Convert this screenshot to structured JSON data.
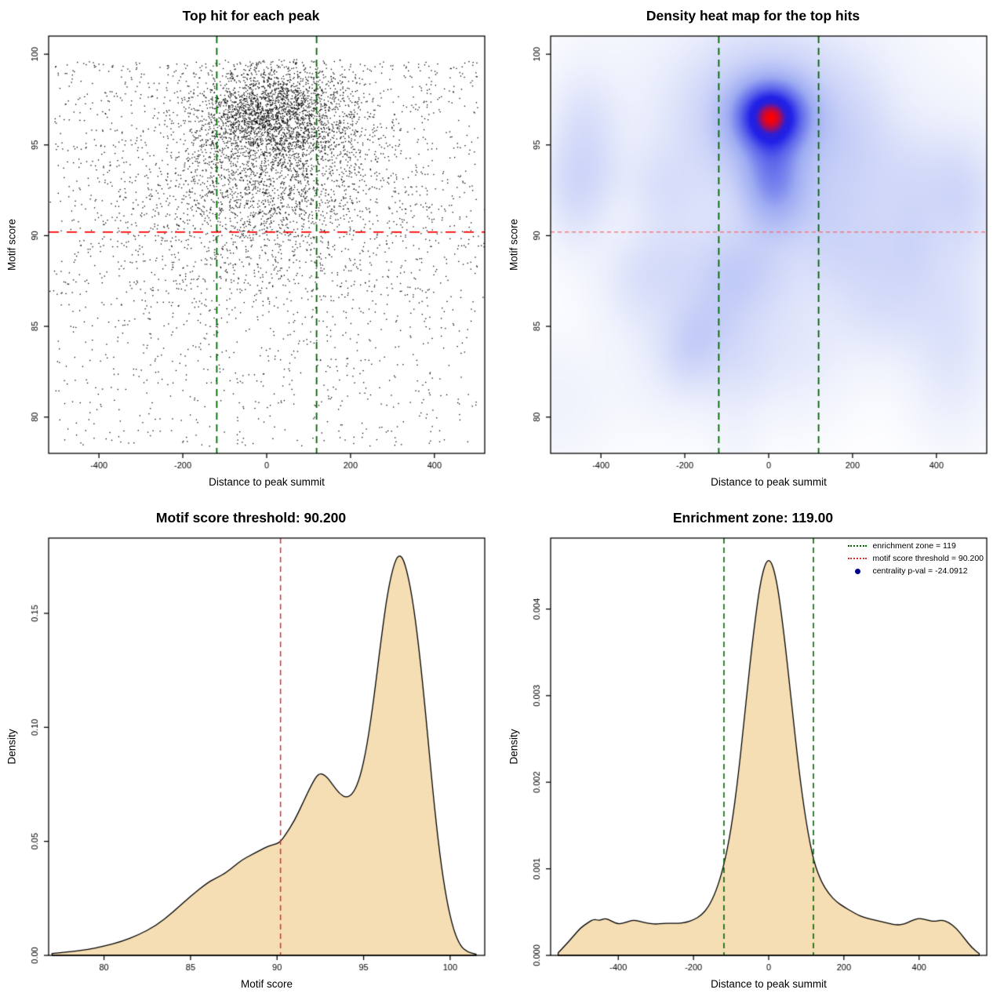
{
  "chart_data": [
    {
      "type": "scatter",
      "title": "Top hit for each peak",
      "xlabel": "Distance to peak summit",
      "ylabel": "Motif score",
      "xlim": [
        -520,
        520
      ],
      "ylim": [
        78,
        101
      ],
      "xticks": [
        -400,
        -200,
        0,
        200,
        400
      ],
      "xtick_labels": [
        "-400",
        "-200",
        "0",
        "200",
        "400"
      ],
      "yticks": [
        80,
        85,
        90,
        95,
        100
      ],
      "ytick_labels": [
        "80",
        "85",
        "90",
        "95",
        "100"
      ],
      "point_color": "#000000",
      "n_points": 6500,
      "seed": 42,
      "mixture": [
        {
          "weight": 0.4,
          "x": {
            "dist": "normal",
            "mean": 15,
            "sd": 100
          },
          "y": {
            "dist": "normal",
            "mean": 96.6,
            "sd": 1.35,
            "max": 99.7
          }
        },
        {
          "weight": 0.22,
          "x": {
            "dist": "normal",
            "mean": 5,
            "sd": 150
          },
          "y": {
            "dist": "normal",
            "mean": 93.0,
            "sd": 2.0,
            "max": 99.7
          }
        },
        {
          "weight": 0.1,
          "x": {
            "dist": "normal",
            "mean": 10,
            "sd": 260
          },
          "y": {
            "dist": "normal",
            "mean": 89.5,
            "sd": 2.5,
            "max": 99.7
          }
        },
        {
          "weight": 0.28,
          "x": {
            "dist": "uniform",
            "min": -505,
            "max": 505
          },
          "y": {
            "dist": "skew_high",
            "min": 78.4,
            "max": 99.6,
            "power": 1.3
          }
        }
      ],
      "hlines": [
        {
          "y": 90.2,
          "color": "#ff0000",
          "dash": [
            13,
            10
          ],
          "width": 1.8
        }
      ],
      "vlines": [
        {
          "x": -119,
          "color": "#006400",
          "dash": [
            9,
            6
          ],
          "width": 1.8
        },
        {
          "x": 119,
          "color": "#006400",
          "dash": [
            9,
            6
          ],
          "width": 1.8
        }
      ]
    },
    {
      "type": "heatmap",
      "title": "Density heat map for the top hits",
      "xlabel": "Distance to peak summit",
      "ylabel": "Motif score",
      "xlim": [
        -520,
        520
      ],
      "ylim": [
        78,
        101
      ],
      "xticks": [
        -400,
        -200,
        0,
        200,
        400
      ],
      "xtick_labels": [
        "-400",
        "-200",
        "0",
        "200",
        "400"
      ],
      "yticks": [
        80,
        85,
        90,
        95,
        100
      ],
      "ytick_labels": [
        "80",
        "85",
        "90",
        "95",
        "100"
      ],
      "gamma": 0.6,
      "colormap": [
        [
          0,
          "#ffffff"
        ],
        [
          0.12,
          "#eef1fc"
        ],
        [
          0.3,
          "#ccd4f8"
        ],
        [
          0.5,
          "#9dabf2"
        ],
        [
          0.68,
          "#5b64ea"
        ],
        [
          0.82,
          "#2020e8"
        ],
        [
          0.9,
          "#2a1fd8"
        ],
        [
          1,
          "#ff0000"
        ]
      ],
      "kernels": [
        {
          "cx": 5,
          "cy": 96.6,
          "sx": 52,
          "sy": 1.15,
          "amp": 1.0
        },
        {
          "cx": 5,
          "cy": 96.4,
          "sx": 115,
          "sy": 2.5,
          "amp": 0.32
        },
        {
          "cx": 0,
          "cy": 96.3,
          "sx": 230,
          "sy": 4.2,
          "amp": 0.1
        },
        {
          "cx": 5,
          "cy": 94.3,
          "sx": 42,
          "sy": 1.4,
          "amp": 0.16
        },
        {
          "cx": 8,
          "cy": 92.6,
          "sx": 48,
          "sy": 1.6,
          "amp": 0.3
        },
        {
          "cx": -440,
          "cy": 95.3,
          "sx": 55,
          "sy": 2.4,
          "amp": 0.12
        },
        {
          "cx": -460,
          "cy": 92.0,
          "sx": 50,
          "sy": 2.0,
          "amp": 0.09
        },
        {
          "cx": -300,
          "cy": 87.3,
          "sx": 70,
          "sy": 2.0,
          "amp": 0.09
        },
        {
          "cx": -150,
          "cy": 84.2,
          "sx": 80,
          "sy": 2.2,
          "amp": 0.08
        },
        {
          "cx": 60,
          "cy": 83.6,
          "sx": 90,
          "sy": 2.4,
          "amp": 0.07
        },
        {
          "cx": 260,
          "cy": 86.8,
          "sx": 75,
          "sy": 2.2,
          "amp": 0.08
        },
        {
          "cx": 440,
          "cy": 85.8,
          "sx": 70,
          "sy": 2.6,
          "amp": 0.09
        },
        {
          "cx": 470,
          "cy": 91.8,
          "sx": 55,
          "sy": 2.2,
          "amp": 0.07
        },
        {
          "cx": -80,
          "cy": 88.6,
          "sx": 60,
          "sy": 1.8,
          "amp": 0.08
        },
        {
          "cx": 150,
          "cy": 89.5,
          "sx": 60,
          "sy": 1.8,
          "amp": 0.07
        },
        {
          "cx": 350,
          "cy": 92.5,
          "sx": 70,
          "sy": 2.0,
          "amp": 0.06
        },
        {
          "cx": -230,
          "cy": 91.5,
          "sx": 60,
          "sy": 2.0,
          "amp": 0.07
        }
      ],
      "noise": {
        "count": 30,
        "seed": 7,
        "amp_min": 0.02,
        "amp_max": 0.05,
        "sx": 60,
        "sy": 1.8,
        "y_min": 80,
        "y_max": 95
      },
      "hlines": [
        {
          "y": 90.2,
          "color": "#ff6666",
          "dash": [
            5,
            4
          ],
          "width": 1.2
        }
      ],
      "vlines": [
        {
          "x": -119,
          "color": "#006400",
          "dash": [
            9,
            6
          ],
          "width": 1.8
        },
        {
          "x": 119,
          "color": "#006400",
          "dash": [
            9,
            6
          ],
          "width": 1.8
        }
      ]
    },
    {
      "type": "area",
      "title": "Motif score threshold: 90.200",
      "xlabel": "Motif score",
      "ylabel": "Density",
      "xlim": [
        76.8,
        102
      ],
      "ylim": [
        0,
        0.183
      ],
      "xticks": [
        80,
        85,
        90,
        95,
        100
      ],
      "xtick_labels": [
        "80",
        "85",
        "90",
        "95",
        "100"
      ],
      "yticks": [
        0,
        0.05,
        0.1,
        0.15
      ],
      "ytick_labels": [
        "0.00",
        "0.05",
        "0.10",
        "0.15"
      ],
      "fill": "#f5deb3",
      "stroke": "#000000",
      "points": [
        [
          77,
          0.0008
        ],
        [
          78,
          0.0015
        ],
        [
          79,
          0.0025
        ],
        [
          80,
          0.004
        ],
        [
          81,
          0.006
        ],
        [
          82,
          0.009
        ],
        [
          83,
          0.013
        ],
        [
          84,
          0.019
        ],
        [
          85,
          0.026
        ],
        [
          86,
          0.032
        ],
        [
          86.5,
          0.034
        ],
        [
          87,
          0.036
        ],
        [
          87.5,
          0.039
        ],
        [
          88,
          0.042
        ],
        [
          88.5,
          0.044
        ],
        [
          89,
          0.046
        ],
        [
          89.5,
          0.048
        ],
        [
          90,
          0.049
        ],
        [
          90.2,
          0.05
        ],
        [
          90.5,
          0.053
        ],
        [
          91,
          0.059
        ],
        [
          91.5,
          0.067
        ],
        [
          92,
          0.075
        ],
        [
          92.4,
          0.08
        ],
        [
          92.8,
          0.079
        ],
        [
          93.2,
          0.075
        ],
        [
          93.6,
          0.071
        ],
        [
          94,
          0.069
        ],
        [
          94.4,
          0.071
        ],
        [
          94.8,
          0.078
        ],
        [
          95.2,
          0.092
        ],
        [
          95.6,
          0.113
        ],
        [
          96,
          0.138
        ],
        [
          96.4,
          0.16
        ],
        [
          96.8,
          0.173
        ],
        [
          97.1,
          0.176
        ],
        [
          97.4,
          0.172
        ],
        [
          97.8,
          0.158
        ],
        [
          98.2,
          0.135
        ],
        [
          98.6,
          0.105
        ],
        [
          99,
          0.072
        ],
        [
          99.4,
          0.044
        ],
        [
          99.8,
          0.024
        ],
        [
          100.2,
          0.011
        ],
        [
          100.6,
          0.004
        ],
        [
          101,
          0.0015
        ],
        [
          101.5,
          0.0005
        ]
      ],
      "vlines": [
        {
          "x": 90.2,
          "color": "#cd3333",
          "dash": [
            7,
            5
          ],
          "width": 1.5
        }
      ]
    },
    {
      "type": "area",
      "title": "Enrichment zone: 119.00",
      "xlabel": "Distance to peak summit",
      "ylabel": "Density",
      "xlim": [
        -580,
        580
      ],
      "ylim": [
        0,
        0.00482
      ],
      "xticks": [
        -400,
        -200,
        0,
        200,
        400
      ],
      "xtick_labels": [
        "-400",
        "-200",
        "0",
        "200",
        "400"
      ],
      "yticks": [
        0,
        0.001,
        0.002,
        0.003,
        0.004
      ],
      "ytick_labels": [
        "0.000",
        "0.001",
        "0.002",
        "0.003",
        "0.004"
      ],
      "fill": "#f5deb3",
      "stroke": "#000000",
      "points": [
        [
          -560,
          3e-05
        ],
        [
          -540,
          0.00012
        ],
        [
          -520,
          0.00022
        ],
        [
          -500,
          0.00032
        ],
        [
          -480,
          0.00038
        ],
        [
          -465,
          0.00042
        ],
        [
          -450,
          0.0004
        ],
        [
          -435,
          0.00043
        ],
        [
          -420,
          0.0004
        ],
        [
          -400,
          0.00036
        ],
        [
          -380,
          0.00038
        ],
        [
          -360,
          0.00041
        ],
        [
          -340,
          0.00039
        ],
        [
          -320,
          0.00037
        ],
        [
          -300,
          0.00036
        ],
        [
          -280,
          0.00037
        ],
        [
          -260,
          0.00037
        ],
        [
          -240,
          0.00037
        ],
        [
          -220,
          0.00038
        ],
        [
          -200,
          0.00041
        ],
        [
          -180,
          0.00046
        ],
        [
          -160,
          0.00056
        ],
        [
          -140,
          0.00074
        ],
        [
          -120,
          0.00102
        ],
        [
          -100,
          0.00145
        ],
        [
          -80,
          0.0021
        ],
        [
          -60,
          0.00295
        ],
        [
          -40,
          0.00375
        ],
        [
          -20,
          0.00438
        ],
        [
          0,
          0.00462
        ],
        [
          20,
          0.00438
        ],
        [
          40,
          0.00375
        ],
        [
          60,
          0.00295
        ],
        [
          80,
          0.00215
        ],
        [
          100,
          0.00152
        ],
        [
          120,
          0.00108
        ],
        [
          140,
          0.00085
        ],
        [
          160,
          0.00071
        ],
        [
          180,
          0.00062
        ],
        [
          200,
          0.00056
        ],
        [
          220,
          0.00051
        ],
        [
          240,
          0.00046
        ],
        [
          260,
          0.00043
        ],
        [
          280,
          0.00041
        ],
        [
          300,
          0.00039
        ],
        [
          320,
          0.00037
        ],
        [
          340,
          0.00035
        ],
        [
          360,
          0.00036
        ],
        [
          380,
          0.0004
        ],
        [
          400,
          0.00043
        ],
        [
          420,
          0.00041
        ],
        [
          440,
          0.00039
        ],
        [
          460,
          0.00041
        ],
        [
          480,
          0.00038
        ],
        [
          500,
          0.00031
        ],
        [
          520,
          0.0002
        ],
        [
          540,
          9e-05
        ],
        [
          560,
          2e-05
        ]
      ],
      "vlines": [
        {
          "x": -119,
          "color": "#006400",
          "dash": [
            7,
            5
          ],
          "width": 1.6
        },
        {
          "x": 119,
          "color": "#006400",
          "dash": [
            7,
            5
          ],
          "width": 1.6
        }
      ],
      "legend": {
        "items": [
          {
            "label": "enrichment zone = 119",
            "swatch": "dotted-line",
            "color": "#006400"
          },
          {
            "label": "motif score threshold = 90.200",
            "swatch": "dotted-line",
            "color": "#cd3333"
          },
          {
            "label": "centrality p-val = -24.0912",
            "swatch": "dot",
            "color": "#00008b"
          }
        ]
      }
    }
  ]
}
